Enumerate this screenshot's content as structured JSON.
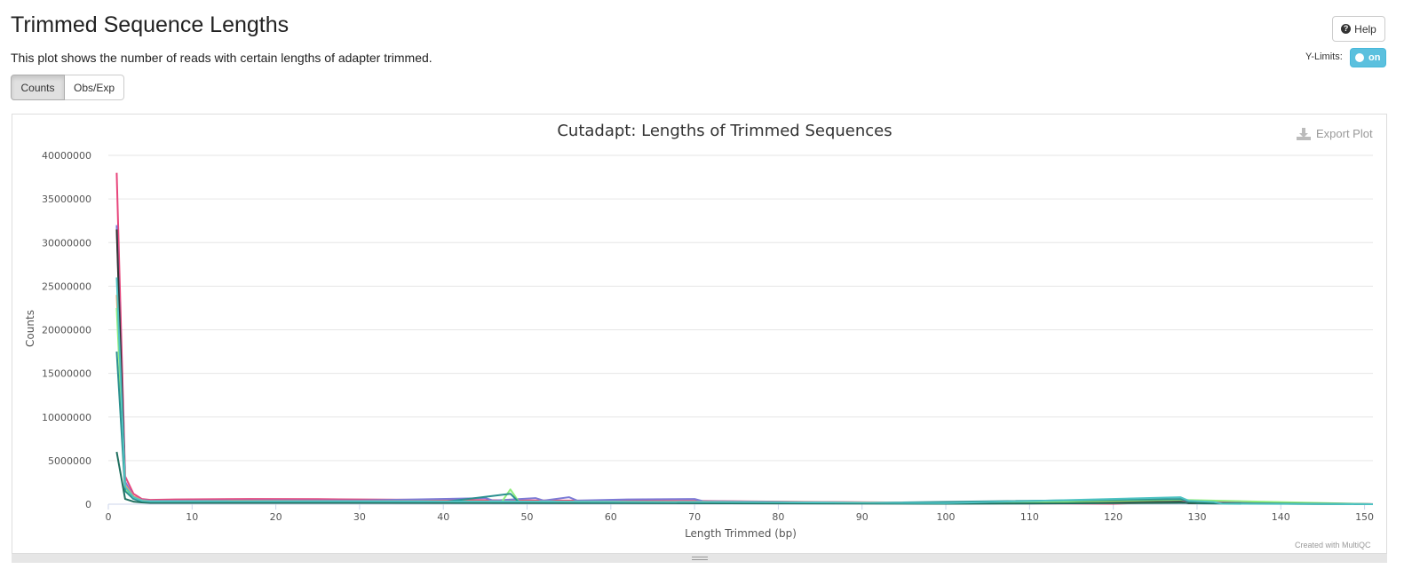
{
  "header": {
    "title": "Trimmed Sequence Lengths",
    "description": "This plot shows the number of reads with certain lengths of adapter trimmed.",
    "help_label": "Help",
    "ylimits_label": "Y-Limits:",
    "toggle_label": "on"
  },
  "tabs": [
    {
      "label": "Counts",
      "active": true
    },
    {
      "label": "Obs/Exp",
      "active": false
    }
  ],
  "export_label": "Export Plot",
  "credit": "Created with MultiQC",
  "chart_data": {
    "type": "line",
    "title": "Cutadapt: Lengths of Trimmed Sequences",
    "xlabel": "Length Trimmed (bp)",
    "ylabel": "Counts",
    "xlim": [
      0,
      151
    ],
    "ylim": [
      0,
      40000000
    ],
    "x_ticks": [
      0,
      10,
      20,
      30,
      40,
      50,
      60,
      70,
      80,
      90,
      100,
      110,
      120,
      130,
      140,
      150
    ],
    "y_ticks": [
      0,
      5000000,
      10000000,
      15000000,
      20000000,
      25000000,
      30000000,
      35000000,
      40000000
    ],
    "x_tick_labels": [
      "0",
      "10",
      "20",
      "30",
      "40",
      "50",
      "60",
      "70",
      "80",
      "90",
      "100",
      "110",
      "120",
      "130",
      "140",
      "150"
    ],
    "y_tick_labels": [
      "0",
      "5000000",
      "10000000",
      "15000000",
      "20000000",
      "25000000",
      "30000000",
      "35000000",
      "40000000"
    ],
    "grid": true,
    "series": [
      {
        "color": "#e8467c",
        "points": [
          [
            1,
            38000000
          ],
          [
            2,
            3200000
          ],
          [
            3,
            1200000
          ],
          [
            4,
            600000
          ],
          [
            5,
            500000
          ],
          [
            8,
            550000
          ],
          [
            17,
            600000
          ],
          [
            25,
            580000
          ],
          [
            30,
            550000
          ],
          [
            40,
            500000
          ],
          [
            48,
            450000
          ],
          [
            60,
            400000
          ],
          [
            70,
            380000
          ],
          [
            80,
            300000
          ],
          [
            100,
            150000
          ],
          [
            120,
            50000
          ],
          [
            128,
            300000
          ],
          [
            151,
            10000
          ]
        ]
      },
      {
        "color": "#7b7bd6",
        "points": [
          [
            1,
            32000000
          ],
          [
            2,
            2600000
          ],
          [
            3,
            900000
          ],
          [
            4,
            500000
          ],
          [
            5,
            400000
          ],
          [
            10,
            420000
          ],
          [
            20,
            450000
          ],
          [
            30,
            430000
          ],
          [
            45,
            700000
          ],
          [
            46,
            420000
          ],
          [
            51,
            700000
          ],
          [
            52,
            420000
          ],
          [
            55,
            800000
          ],
          [
            56,
            420000
          ],
          [
            62,
            550000
          ],
          [
            70,
            600000
          ],
          [
            71,
            350000
          ],
          [
            90,
            200000
          ],
          [
            110,
            80000
          ],
          [
            128,
            200000
          ],
          [
            151,
            5000
          ]
        ]
      },
      {
        "color": "#333333",
        "points": [
          [
            1,
            31500000
          ],
          [
            2,
            2000000
          ],
          [
            3,
            700000
          ],
          [
            4,
            300000
          ],
          [
            5,
            250000
          ],
          [
            20,
            260000
          ],
          [
            40,
            240000
          ],
          [
            60,
            200000
          ],
          [
            80,
            150000
          ],
          [
            100,
            80000
          ],
          [
            128,
            300000
          ],
          [
            129,
            100000
          ],
          [
            151,
            5000
          ]
        ]
      },
      {
        "color": "#f7a35c",
        "points": [
          [
            1,
            24000000
          ],
          [
            2,
            2200000
          ],
          [
            3,
            900000
          ],
          [
            4,
            450000
          ],
          [
            5,
            350000
          ],
          [
            15,
            380000
          ],
          [
            30,
            360000
          ],
          [
            50,
            330000
          ],
          [
            70,
            300000
          ],
          [
            90,
            200000
          ],
          [
            110,
            90000
          ],
          [
            128,
            150000
          ],
          [
            151,
            5000
          ]
        ]
      },
      {
        "color": "#90ed7d",
        "points": [
          [
            1,
            22500000
          ],
          [
            2,
            1800000
          ],
          [
            3,
            700000
          ],
          [
            4,
            350000
          ],
          [
            5,
            280000
          ],
          [
            20,
            300000
          ],
          [
            40,
            280000
          ],
          [
            47,
            300000
          ],
          [
            48,
            1700000
          ],
          [
            49,
            300000
          ],
          [
            60,
            250000
          ],
          [
            80,
            180000
          ],
          [
            100,
            90000
          ],
          [
            128,
            500000
          ],
          [
            151,
            5000
          ]
        ]
      },
      {
        "color": "#2b908f",
        "points": [
          [
            1,
            17500000
          ],
          [
            2,
            1500000
          ],
          [
            3,
            600000
          ],
          [
            4,
            300000
          ],
          [
            5,
            250000
          ],
          [
            20,
            260000
          ],
          [
            40,
            250000
          ],
          [
            48,
            1200000
          ],
          [
            49,
            250000
          ],
          [
            70,
            220000
          ],
          [
            90,
            140000
          ],
          [
            128,
            600000
          ],
          [
            130,
            100000
          ],
          [
            151,
            5000
          ]
        ]
      },
      {
        "color": "#1f6f5f",
        "points": [
          [
            1,
            6000000
          ],
          [
            2,
            600000
          ],
          [
            3,
            300000
          ],
          [
            4,
            200000
          ],
          [
            5,
            150000
          ],
          [
            20,
            150000
          ],
          [
            40,
            140000
          ],
          [
            60,
            120000
          ],
          [
            80,
            90000
          ],
          [
            100,
            50000
          ],
          [
            128,
            150000
          ],
          [
            151,
            2000
          ]
        ]
      },
      {
        "color": "#4fc3c3",
        "points": [
          [
            1,
            26000000
          ],
          [
            2,
            2000000
          ],
          [
            3,
            800000
          ],
          [
            4,
            400000
          ],
          [
            5,
            320000
          ],
          [
            20,
            340000
          ],
          [
            40,
            320000
          ],
          [
            60,
            290000
          ],
          [
            80,
            220000
          ],
          [
            100,
            120000
          ],
          [
            128,
            800000
          ],
          [
            129,
            400000
          ],
          [
            132,
            250000
          ],
          [
            133,
            50000
          ],
          [
            151,
            5000
          ]
        ]
      }
    ]
  }
}
